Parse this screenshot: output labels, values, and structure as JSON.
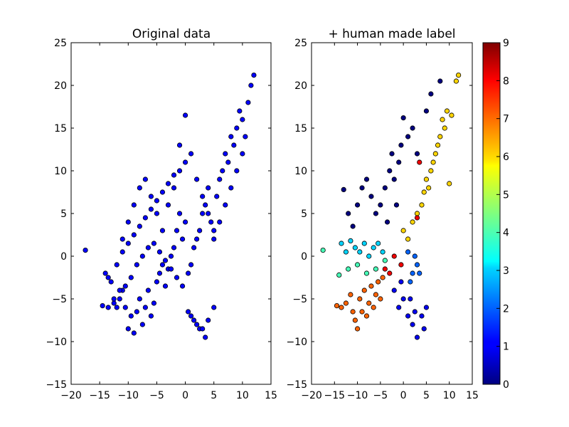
{
  "chart_data": [
    {
      "type": "scatter",
      "title": "Original data",
      "xlabel": "",
      "ylabel": "",
      "xlim": [
        -20,
        15
      ],
      "ylim": [
        -15,
        25
      ],
      "x_ticks": [
        "−20",
        "−15",
        "−10",
        "−5",
        "0",
        "5",
        "10",
        "15"
      ],
      "y_ticks": [
        "−15",
        "−10",
        "−5",
        "0",
        "5",
        "10",
        "15",
        "20",
        "25"
      ],
      "grid": false,
      "marker_color": "#0000ff",
      "series": [
        {
          "x": [
            -17.5,
            -14,
            -13.5,
            -13,
            -12.5,
            -12,
            -11.5,
            -11,
            -10.5,
            -10,
            -9.5,
            -9,
            -8.5,
            -8,
            -7.5,
            -7,
            -6.5,
            -6,
            -5.5,
            -5,
            -4.5,
            -4,
            -3.5,
            -3,
            -2.5,
            -2,
            -1.5,
            -1,
            -0.5,
            0,
            0.5,
            1,
            1.5,
            2,
            2.5,
            3,
            3.5,
            4,
            4.5,
            5,
            5.5,
            6,
            6.5,
            7,
            7.5,
            8,
            8.5,
            9,
            9.5,
            10,
            10.5,
            11,
            11.5,
            12,
            -11,
            -10,
            -9,
            -8,
            -7,
            -6,
            -5,
            -4,
            -3,
            -2,
            -1,
            0,
            1,
            2,
            3,
            4,
            5,
            6,
            7,
            8,
            9,
            10,
            -14.5,
            -13.5,
            -12.5,
            -11.5,
            -10.5,
            -9.5,
            -8.5,
            -7.5,
            -6.5,
            -5.5,
            -4.5,
            -3.5,
            -2.5,
            -1.5,
            -0.5,
            0.5,
            1.5,
            2.5,
            3.5,
            -12,
            -11,
            -10,
            -9,
            -8,
            -7,
            -6,
            -5,
            -4,
            -3,
            -2,
            -1,
            0,
            1,
            2,
            3,
            4,
            5
          ],
          "y": [
            0.7,
            -2,
            -2.5,
            -3,
            -5.5,
            -6,
            -5,
            -4,
            -6,
            -8.5,
            -7,
            -9,
            -6.5,
            -5,
            -8,
            -6,
            -4,
            -7,
            -5.5,
            -3,
            -2,
            -1,
            -3.5,
            -1.5,
            0,
            1,
            3,
            5,
            2,
            4,
            -2,
            -1,
            1,
            2,
            3,
            5,
            6,
            8,
            4,
            3,
            7,
            9,
            10,
            12,
            11,
            14,
            13,
            15,
            17,
            16,
            14,
            18,
            20,
            21.2,
            2,
            4,
            6,
            8,
            9,
            7,
            5,
            3,
            6,
            8,
            10,
            11,
            12,
            9,
            7,
            5,
            2,
            4,
            6,
            8,
            10,
            12,
            -5.8,
            -6,
            -5,
            -4,
            -3.5,
            -2.5,
            -1,
            0,
            1,
            1.5,
            0.5,
            -0.5,
            -1.5,
            -2.5,
            -3.5,
            -6.5,
            -7.5,
            -8.5,
            -9.5,
            -1,
            0.5,
            1.5,
            2.5,
            3.5,
            4.5,
            5.5,
            6.5,
            7.5,
            8.5,
            9.5,
            13,
            16.5,
            -7,
            -8,
            -8.5,
            -7.5,
            -6
          ]
        }
      ]
    },
    {
      "type": "scatter",
      "title": "+ human made label",
      "xlabel": "",
      "ylabel": "",
      "xlim": [
        -20,
        15
      ],
      "ylim": [
        -15,
        25
      ],
      "x_ticks": [
        "−20",
        "−15",
        "−10",
        "−5",
        "0",
        "5",
        "10",
        "15"
      ],
      "y_ticks": [
        "−15",
        "−10",
        "−5",
        "0",
        "5",
        "10",
        "15",
        "20",
        "25"
      ],
      "grid": false,
      "colormap": "jet",
      "colorbar": {
        "min": 0,
        "max": 9,
        "ticks": [
          "0",
          "1",
          "2",
          "3",
          "4",
          "5",
          "6",
          "7",
          "8",
          "9"
        ]
      },
      "series": [
        {
          "name": "",
          "points": [
            {
              "x": -17.5,
              "y": 0.7,
              "label": 4
            },
            {
              "x": -14,
              "y": -2.2,
              "label": 4
            },
            {
              "x": -13.5,
              "y": 1.5,
              "label": 3
            },
            {
              "x": -12.5,
              "y": 0.5,
              "label": 3
            },
            {
              "x": -11.5,
              "y": 1.8,
              "label": 3
            },
            {
              "x": -10.5,
              "y": 1,
              "label": 3
            },
            {
              "x": -9.5,
              "y": 0.5,
              "label": 3
            },
            {
              "x": -8.5,
              "y": 1.5,
              "label": 3
            },
            {
              "x": -7.5,
              "y": 0,
              "label": 3
            },
            {
              "x": -6.5,
              "y": 1,
              "label": 3
            },
            {
              "x": -5.5,
              "y": 1.5,
              "label": 3
            },
            {
              "x": -4.5,
              "y": 0.5,
              "label": 3
            },
            {
              "x": -12,
              "y": -1.5,
              "label": 4
            },
            {
              "x": -10,
              "y": -1,
              "label": 4
            },
            {
              "x": -8,
              "y": -2,
              "label": 4
            },
            {
              "x": -6,
              "y": -1.5,
              "label": 4
            },
            {
              "x": -4,
              "y": -0.5,
              "label": 4
            },
            {
              "x": -14.5,
              "y": -5.8,
              "label": 7
            },
            {
              "x": -13.5,
              "y": -6,
              "label": 7
            },
            {
              "x": -12.5,
              "y": -5.5,
              "label": 7
            },
            {
              "x": -11.5,
              "y": -4.5,
              "label": 7
            },
            {
              "x": -11,
              "y": -6.5,
              "label": 7
            },
            {
              "x": -10.5,
              "y": -7.5,
              "label": 7
            },
            {
              "x": -10,
              "y": -8.5,
              "label": 7
            },
            {
              "x": -9.5,
              "y": -5,
              "label": 7
            },
            {
              "x": -9,
              "y": -6.5,
              "label": 7
            },
            {
              "x": -8.5,
              "y": -4,
              "label": 7
            },
            {
              "x": -8,
              "y": -7,
              "label": 7
            },
            {
              "x": -7.5,
              "y": -5.5,
              "label": 7
            },
            {
              "x": -7,
              "y": -3.5,
              "label": 7
            },
            {
              "x": -6.5,
              "y": -6,
              "label": 7
            },
            {
              "x": -6,
              "y": -4.5,
              "label": 7
            },
            {
              "x": -5.5,
              "y": -3,
              "label": 7
            },
            {
              "x": -5,
              "y": -5,
              "label": 7
            },
            {
              "x": -4.5,
              "y": -2.5,
              "label": 7
            },
            {
              "x": -10,
              "y": 6,
              "label": 0
            },
            {
              "x": -9,
              "y": 8,
              "label": 0
            },
            {
              "x": -8,
              "y": 9,
              "label": 0
            },
            {
              "x": -7,
              "y": 7,
              "label": 0
            },
            {
              "x": -6,
              "y": 5,
              "label": 0
            },
            {
              "x": -5,
              "y": 6,
              "label": 0
            },
            {
              "x": -4,
              "y": 8,
              "label": 0
            },
            {
              "x": -3,
              "y": 10,
              "label": 0
            },
            {
              "x": -2.5,
              "y": 12,
              "label": 0
            },
            {
              "x": -2,
              "y": 9,
              "label": 0
            },
            {
              "x": -1,
              "y": 11,
              "label": 0
            },
            {
              "x": -0.5,
              "y": 13,
              "label": 0
            },
            {
              "x": 0,
              "y": 16.2,
              "label": 0
            },
            {
              "x": 1,
              "y": 14,
              "label": 0
            },
            {
              "x": 2,
              "y": 15,
              "label": 0
            },
            {
              "x": 3,
              "y": 12,
              "label": 0
            },
            {
              "x": -3.5,
              "y": 4,
              "label": 0
            },
            {
              "x": -1.5,
              "y": 6,
              "label": 0
            },
            {
              "x": -12,
              "y": 5,
              "label": 0
            },
            {
              "x": -11,
              "y": 3.5,
              "label": 0
            },
            {
              "x": -13,
              "y": 7.8,
              "label": 0
            },
            {
              "x": -2,
              "y": -4,
              "label": 1
            },
            {
              "x": -1,
              "y": -6,
              "label": 1
            },
            {
              "x": 0,
              "y": -5,
              "label": 1
            },
            {
              "x": 1,
              "y": -7,
              "label": 1
            },
            {
              "x": 2,
              "y": -8,
              "label": 1
            },
            {
              "x": 3,
              "y": -9.5,
              "label": 1
            },
            {
              "x": 2.5,
              "y": -6.5,
              "label": 1
            },
            {
              "x": 4,
              "y": -7,
              "label": 1
            },
            {
              "x": 4.5,
              "y": -8.5,
              "label": 1
            },
            {
              "x": 5,
              "y": -6,
              "label": 1
            },
            {
              "x": -0.5,
              "y": -3,
              "label": 1
            },
            {
              "x": 1.5,
              "y": -5,
              "label": 1
            },
            {
              "x": 2,
              "y": -2,
              "label": 2
            },
            {
              "x": 2.5,
              "y": 0,
              "label": 2
            },
            {
              "x": 3,
              "y": -1,
              "label": 2
            },
            {
              "x": 1.5,
              "y": -3,
              "label": 2
            },
            {
              "x": 3.5,
              "y": -2,
              "label": 2
            },
            {
              "x": 1,
              "y": 0.5,
              "label": 2
            },
            {
              "x": 0,
              "y": 3,
              "label": 6
            },
            {
              "x": 1,
              "y": 2,
              "label": 6
            },
            {
              "x": 2,
              "y": 4,
              "label": 6
            },
            {
              "x": 3,
              "y": 5,
              "label": 6
            },
            {
              "x": 4,
              "y": 6,
              "label": 6
            },
            {
              "x": 4.5,
              "y": 7.5,
              "label": 6
            },
            {
              "x": 5,
              "y": 9,
              "label": 6
            },
            {
              "x": 5.5,
              "y": 8,
              "label": 6
            },
            {
              "x": 6,
              "y": 10,
              "label": 6
            },
            {
              "x": 6.5,
              "y": 11,
              "label": 6
            },
            {
              "x": 7,
              "y": 12,
              "label": 6
            },
            {
              "x": 7.5,
              "y": 13,
              "label": 6
            },
            {
              "x": 8,
              "y": 14,
              "label": 6
            },
            {
              "x": 8.5,
              "y": 16,
              "label": 6
            },
            {
              "x": 9,
              "y": 15,
              "label": 6
            },
            {
              "x": 9.5,
              "y": 17,
              "label": 6
            },
            {
              "x": 10,
              "y": 8.5,
              "label": 6
            },
            {
              "x": 10.5,
              "y": 16.5,
              "label": 6
            },
            {
              "x": 11.5,
              "y": 20.5,
              "label": 6
            },
            {
              "x": 12,
              "y": 21.2,
              "label": 6
            },
            {
              "x": -2,
              "y": 0,
              "label": 8
            },
            {
              "x": -4,
              "y": -1.5,
              "label": 8
            },
            {
              "x": -0.5,
              "y": -1,
              "label": 8
            },
            {
              "x": -3,
              "y": -2,
              "label": 8
            },
            {
              "x": 3.5,
              "y": 11,
              "label": 8
            },
            {
              "x": 3,
              "y": 4.5,
              "label": 8
            },
            {
              "x": 8,
              "y": 20.5,
              "label": 0
            },
            {
              "x": 5,
              "y": 17,
              "label": 0
            },
            {
              "x": 6,
              "y": 19,
              "label": 0
            }
          ]
        }
      ]
    }
  ]
}
